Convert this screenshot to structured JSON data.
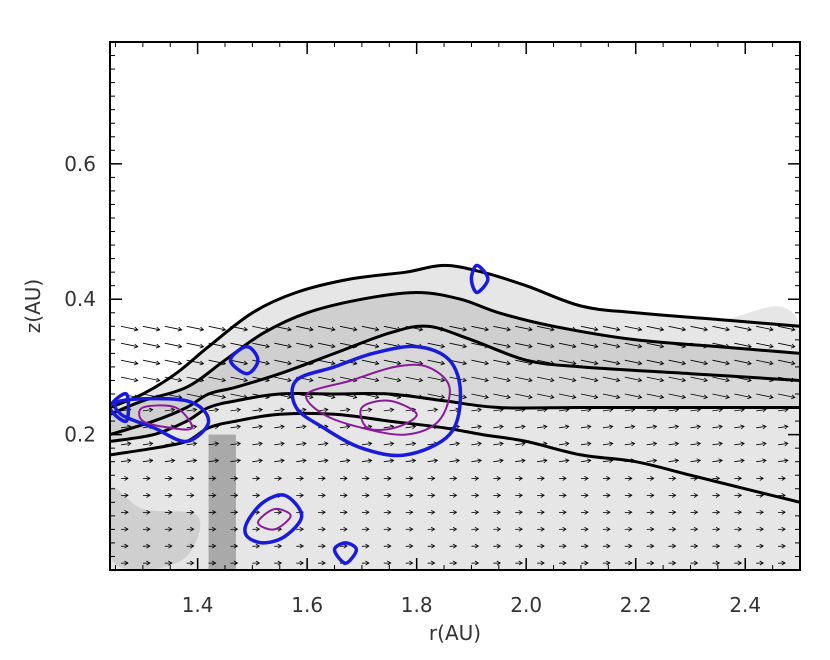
{
  "chart_data": {
    "type": "contour",
    "xlabel": "r(AU)",
    "ylabel": "z(AU)",
    "xlim": [
      1.24,
      2.5
    ],
    "ylim": [
      0.0,
      0.78
    ],
    "x_ticks": [
      1.4,
      1.6,
      1.8,
      2.0,
      2.2,
      2.4
    ],
    "x_tick_labels": [
      "1.4",
      "1.6",
      "1.8",
      "2.0",
      "2.2",
      "2.4"
    ],
    "y_ticks": [
      0.2,
      0.4,
      0.6
    ],
    "y_tick_labels": [
      "0.2",
      "0.4",
      "0.6"
    ],
    "colors": {
      "frame": "#000000",
      "density_contour": "#000000",
      "blue_contour": "#1a1adb",
      "purple_contour": "#8a1a9c",
      "shade_light": "#e6e6e6",
      "shade_mid": "#cfcfcf",
      "shade_dark": "#a9a9a9",
      "vectors": "#000000"
    },
    "black_contours": [
      [
        [
          1.24,
          0.17
        ],
        [
          1.32,
          0.18
        ],
        [
          1.38,
          0.19
        ],
        [
          1.42,
          0.21
        ],
        [
          1.47,
          0.22
        ],
        [
          1.55,
          0.23
        ],
        [
          1.65,
          0.23
        ],
        [
          1.75,
          0.22
        ],
        [
          1.85,
          0.21
        ],
        [
          1.92,
          0.2
        ],
        [
          2.0,
          0.19
        ],
        [
          2.1,
          0.17
        ],
        [
          2.2,
          0.16
        ],
        [
          2.3,
          0.14
        ],
        [
          2.4,
          0.12
        ],
        [
          2.5,
          0.1
        ]
      ],
      [
        [
          1.24,
          0.19
        ],
        [
          1.32,
          0.2
        ],
        [
          1.38,
          0.22
        ],
        [
          1.42,
          0.24
        ],
        [
          1.47,
          0.25
        ],
        [
          1.55,
          0.26
        ],
        [
          1.65,
          0.26
        ],
        [
          1.75,
          0.26
        ],
        [
          1.85,
          0.25
        ],
        [
          1.95,
          0.24
        ],
        [
          2.1,
          0.24
        ],
        [
          2.3,
          0.24
        ],
        [
          2.5,
          0.24
        ]
      ],
      [
        [
          1.24,
          0.2
        ],
        [
          1.32,
          0.22
        ],
        [
          1.38,
          0.24
        ],
        [
          1.42,
          0.26
        ],
        [
          1.47,
          0.27
        ],
        [
          1.55,
          0.29
        ],
        [
          1.65,
          0.32
        ],
        [
          1.75,
          0.35
        ],
        [
          1.82,
          0.36
        ],
        [
          1.9,
          0.34
        ],
        [
          2.0,
          0.31
        ],
        [
          2.1,
          0.3
        ],
        [
          2.3,
          0.29
        ],
        [
          2.5,
          0.28
        ]
      ],
      [
        [
          1.24,
          0.23
        ],
        [
          1.3,
          0.25
        ],
        [
          1.38,
          0.27
        ],
        [
          1.45,
          0.31
        ],
        [
          1.52,
          0.35
        ],
        [
          1.6,
          0.38
        ],
        [
          1.7,
          0.4
        ],
        [
          1.8,
          0.41
        ],
        [
          1.88,
          0.4
        ],
        [
          1.95,
          0.38
        ],
        [
          2.05,
          0.36
        ],
        [
          2.2,
          0.34
        ],
        [
          2.35,
          0.33
        ],
        [
          2.5,
          0.32
        ]
      ],
      [
        [
          1.24,
          0.24
        ],
        [
          1.3,
          0.26
        ],
        [
          1.36,
          0.29
        ],
        [
          1.42,
          0.33
        ],
        [
          1.5,
          0.38
        ],
        [
          1.58,
          0.41
        ],
        [
          1.68,
          0.43
        ],
        [
          1.78,
          0.44
        ],
        [
          1.85,
          0.45
        ],
        [
          1.92,
          0.44
        ],
        [
          2.0,
          0.42
        ],
        [
          2.1,
          0.39
        ],
        [
          2.2,
          0.38
        ],
        [
          2.35,
          0.37
        ],
        [
          2.5,
          0.36
        ]
      ]
    ],
    "blue_contours": [
      [
        [
          1.27,
          0.26
        ],
        [
          1.24,
          0.24
        ],
        [
          1.27,
          0.22
        ]
      ],
      [
        [
          1.26,
          0.25
        ],
        [
          1.38,
          0.25
        ],
        [
          1.42,
          0.22
        ],
        [
          1.38,
          0.19
        ],
        [
          1.32,
          0.21
        ],
        [
          1.26,
          0.23
        ]
      ],
      [
        [
          1.46,
          0.31
        ],
        [
          1.49,
          0.33
        ],
        [
          1.51,
          0.31
        ],
        [
          1.49,
          0.29
        ]
      ],
      [
        [
          1.9,
          0.43
        ],
        [
          1.91,
          0.45
        ],
        [
          1.93,
          0.43
        ],
        [
          1.91,
          0.41
        ]
      ],
      [
        [
          1.58,
          0.28
        ],
        [
          1.65,
          0.3
        ],
        [
          1.72,
          0.32
        ],
        [
          1.8,
          0.33
        ],
        [
          1.86,
          0.31
        ],
        [
          1.88,
          0.26
        ],
        [
          1.86,
          0.2
        ],
        [
          1.78,
          0.17
        ],
        [
          1.7,
          0.18
        ],
        [
          1.63,
          0.21
        ],
        [
          1.58,
          0.24
        ]
      ],
      [
        [
          1.49,
          0.07
        ],
        [
          1.52,
          0.1
        ],
        [
          1.56,
          0.11
        ],
        [
          1.59,
          0.08
        ],
        [
          1.56,
          0.05
        ],
        [
          1.52,
          0.04
        ],
        [
          1.49,
          0.05
        ]
      ],
      [
        [
          1.65,
          0.03
        ],
        [
          1.67,
          0.04
        ],
        [
          1.69,
          0.03
        ],
        [
          1.67,
          0.01
        ]
      ]
    ],
    "purple_contours": [
      [
        [
          1.3,
          0.24
        ],
        [
          1.36,
          0.24
        ],
        [
          1.39,
          0.21
        ],
        [
          1.35,
          0.21
        ],
        [
          1.3,
          0.22
        ]
      ],
      [
        [
          1.6,
          0.26
        ],
        [
          1.68,
          0.28
        ],
        [
          1.76,
          0.3
        ],
        [
          1.82,
          0.3
        ],
        [
          1.86,
          0.27
        ],
        [
          1.84,
          0.22
        ],
        [
          1.78,
          0.2
        ],
        [
          1.7,
          0.21
        ],
        [
          1.63,
          0.23
        ]
      ],
      [
        [
          1.7,
          0.24
        ],
        [
          1.75,
          0.25
        ],
        [
          1.8,
          0.23
        ],
        [
          1.76,
          0.21
        ],
        [
          1.71,
          0.21
        ]
      ],
      [
        [
          1.51,
          0.07
        ],
        [
          1.54,
          0.09
        ],
        [
          1.57,
          0.08
        ],
        [
          1.54,
          0.06
        ]
      ]
    ]
  }
}
